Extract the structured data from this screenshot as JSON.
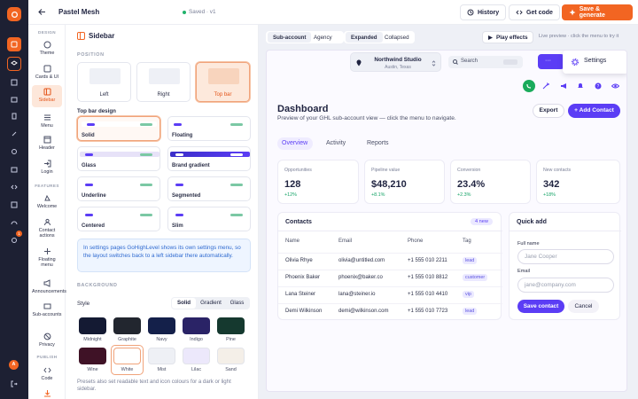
{
  "app": {
    "title": "Pastel Mesh",
    "status": "Saved · v1"
  },
  "toolbar": {
    "history": "History",
    "get_code": "Get code",
    "save_generate": "Save & generate"
  },
  "nav": {
    "sections": {
      "design": "DESIGN",
      "features": "FEATURES",
      "publish": "PUBLISH"
    },
    "items": [
      {
        "label": "Theme",
        "icon": "palette-icon"
      },
      {
        "label": "Cards & UI",
        "icon": "cards-icon"
      },
      {
        "label": "Sidebar",
        "icon": "sidebar-icon"
      },
      {
        "label": "Menu",
        "icon": "menu-icon"
      },
      {
        "label": "Header",
        "icon": "header-icon"
      },
      {
        "label": "Login",
        "icon": "login-icon"
      },
      {
        "label": "Welcome",
        "icon": "welcome-icon"
      },
      {
        "label": "Contact actions",
        "icon": "contact-actions-icon"
      },
      {
        "label": "Floating menu",
        "icon": "floating-menu-icon"
      },
      {
        "label": "Announcements",
        "icon": "megaphone-icon"
      },
      {
        "label": "Sub-accounts",
        "icon": "sub-accounts-icon"
      },
      {
        "label": "Privacy",
        "icon": "privacy-icon"
      },
      {
        "label": "Code",
        "icon": "code-icon"
      }
    ]
  },
  "panel": {
    "title": "Sidebar",
    "position_label": "POSITION",
    "positions": [
      "Left",
      "Right",
      "Top bar"
    ],
    "topbar_design_label": "Top bar design",
    "designs": [
      "Solid",
      "Floating",
      "Glass",
      "Brand gradient",
      "Underline",
      "Segmented",
      "Centered",
      "Slim"
    ],
    "info": "In settings pages GoHighLevel shows its own settings menu, so the layout switches back to a left sidebar there automatically.",
    "background_label": "BACKGROUND",
    "style_label": "Style",
    "style_tabs": [
      "Solid",
      "Gradient",
      "Glass"
    ],
    "swatches": [
      {
        "name": "Midnight",
        "color": "#141a33"
      },
      {
        "name": "Graphite",
        "color": "#22262f"
      },
      {
        "name": "Navy",
        "color": "#14204a"
      },
      {
        "name": "Indigo",
        "color": "#2a2366"
      },
      {
        "name": "Pine",
        "color": "#15392f"
      },
      {
        "name": "Wine",
        "color": "#3f1226"
      },
      {
        "name": "White",
        "color": "#ffffff"
      },
      {
        "name": "Mist",
        "color": "#eef0f5"
      },
      {
        "name": "Lilac",
        "color": "#ece8fb"
      },
      {
        "name": "Sand",
        "color": "#f4efe8"
      }
    ],
    "footnote": "Presets also set readable text and icon colours for a dark or light sidebar."
  },
  "preview_bar": {
    "tabs": [
      "Sub-account",
      "Agency"
    ],
    "modes": [
      "Expanded",
      "Collapsed"
    ],
    "play": "Play effects",
    "hint": "Live preview · click the menu to try it"
  },
  "preview": {
    "location": {
      "name": "Northwind Studio",
      "place": "Austin, Texas"
    },
    "search_placeholder": "Search",
    "settings": "Settings",
    "dashboard_title": "Dashboard",
    "dashboard_sub": "Preview of your GHL sub-account view — click the menu to navigate.",
    "export": "Export",
    "add_contact": "+ Add Contact",
    "tabs": [
      "Overview",
      "Activity",
      "Reports"
    ],
    "stats": [
      {
        "label": "Opportunities",
        "value": "128",
        "delta": "+12%"
      },
      {
        "label": "Pipeline value",
        "value": "$48,210",
        "delta": "+8.1%"
      },
      {
        "label": "Conversion",
        "value": "23.4%",
        "delta": "+2.3%"
      },
      {
        "label": "New contacts",
        "value": "342",
        "delta": "+18%"
      }
    ],
    "contacts": {
      "title": "Contacts",
      "badge": "4 new",
      "headers": [
        "Name",
        "Email",
        "Phone",
        "Tag"
      ],
      "rows": [
        {
          "name": "Olivia Rhye",
          "email": "olivia@untitled.com",
          "phone": "+1 555 010 2211",
          "tag": "lead"
        },
        {
          "name": "Phoenix Baker",
          "email": "phoenix@baker.co",
          "phone": "+1 555 010 8812",
          "tag": "customer"
        },
        {
          "name": "Lana Steiner",
          "email": "lana@steiner.io",
          "phone": "+1 555 010 4410",
          "tag": "vip"
        },
        {
          "name": "Demi Wilkinson",
          "email": "demi@wilkinson.com",
          "phone": "+1 555 010 7723",
          "tag": "lead"
        }
      ]
    },
    "quick_add": {
      "title": "Quick add",
      "full_name_label": "Full name",
      "full_name_ph": "Jane Cooper",
      "email_label": "Email",
      "email_ph": "jane@company.com",
      "save": "Save contact",
      "cancel": "Cancel"
    }
  },
  "colors": {
    "accent": "#f26522",
    "brand": "#5b3df5",
    "rail": "#1d2033"
  }
}
